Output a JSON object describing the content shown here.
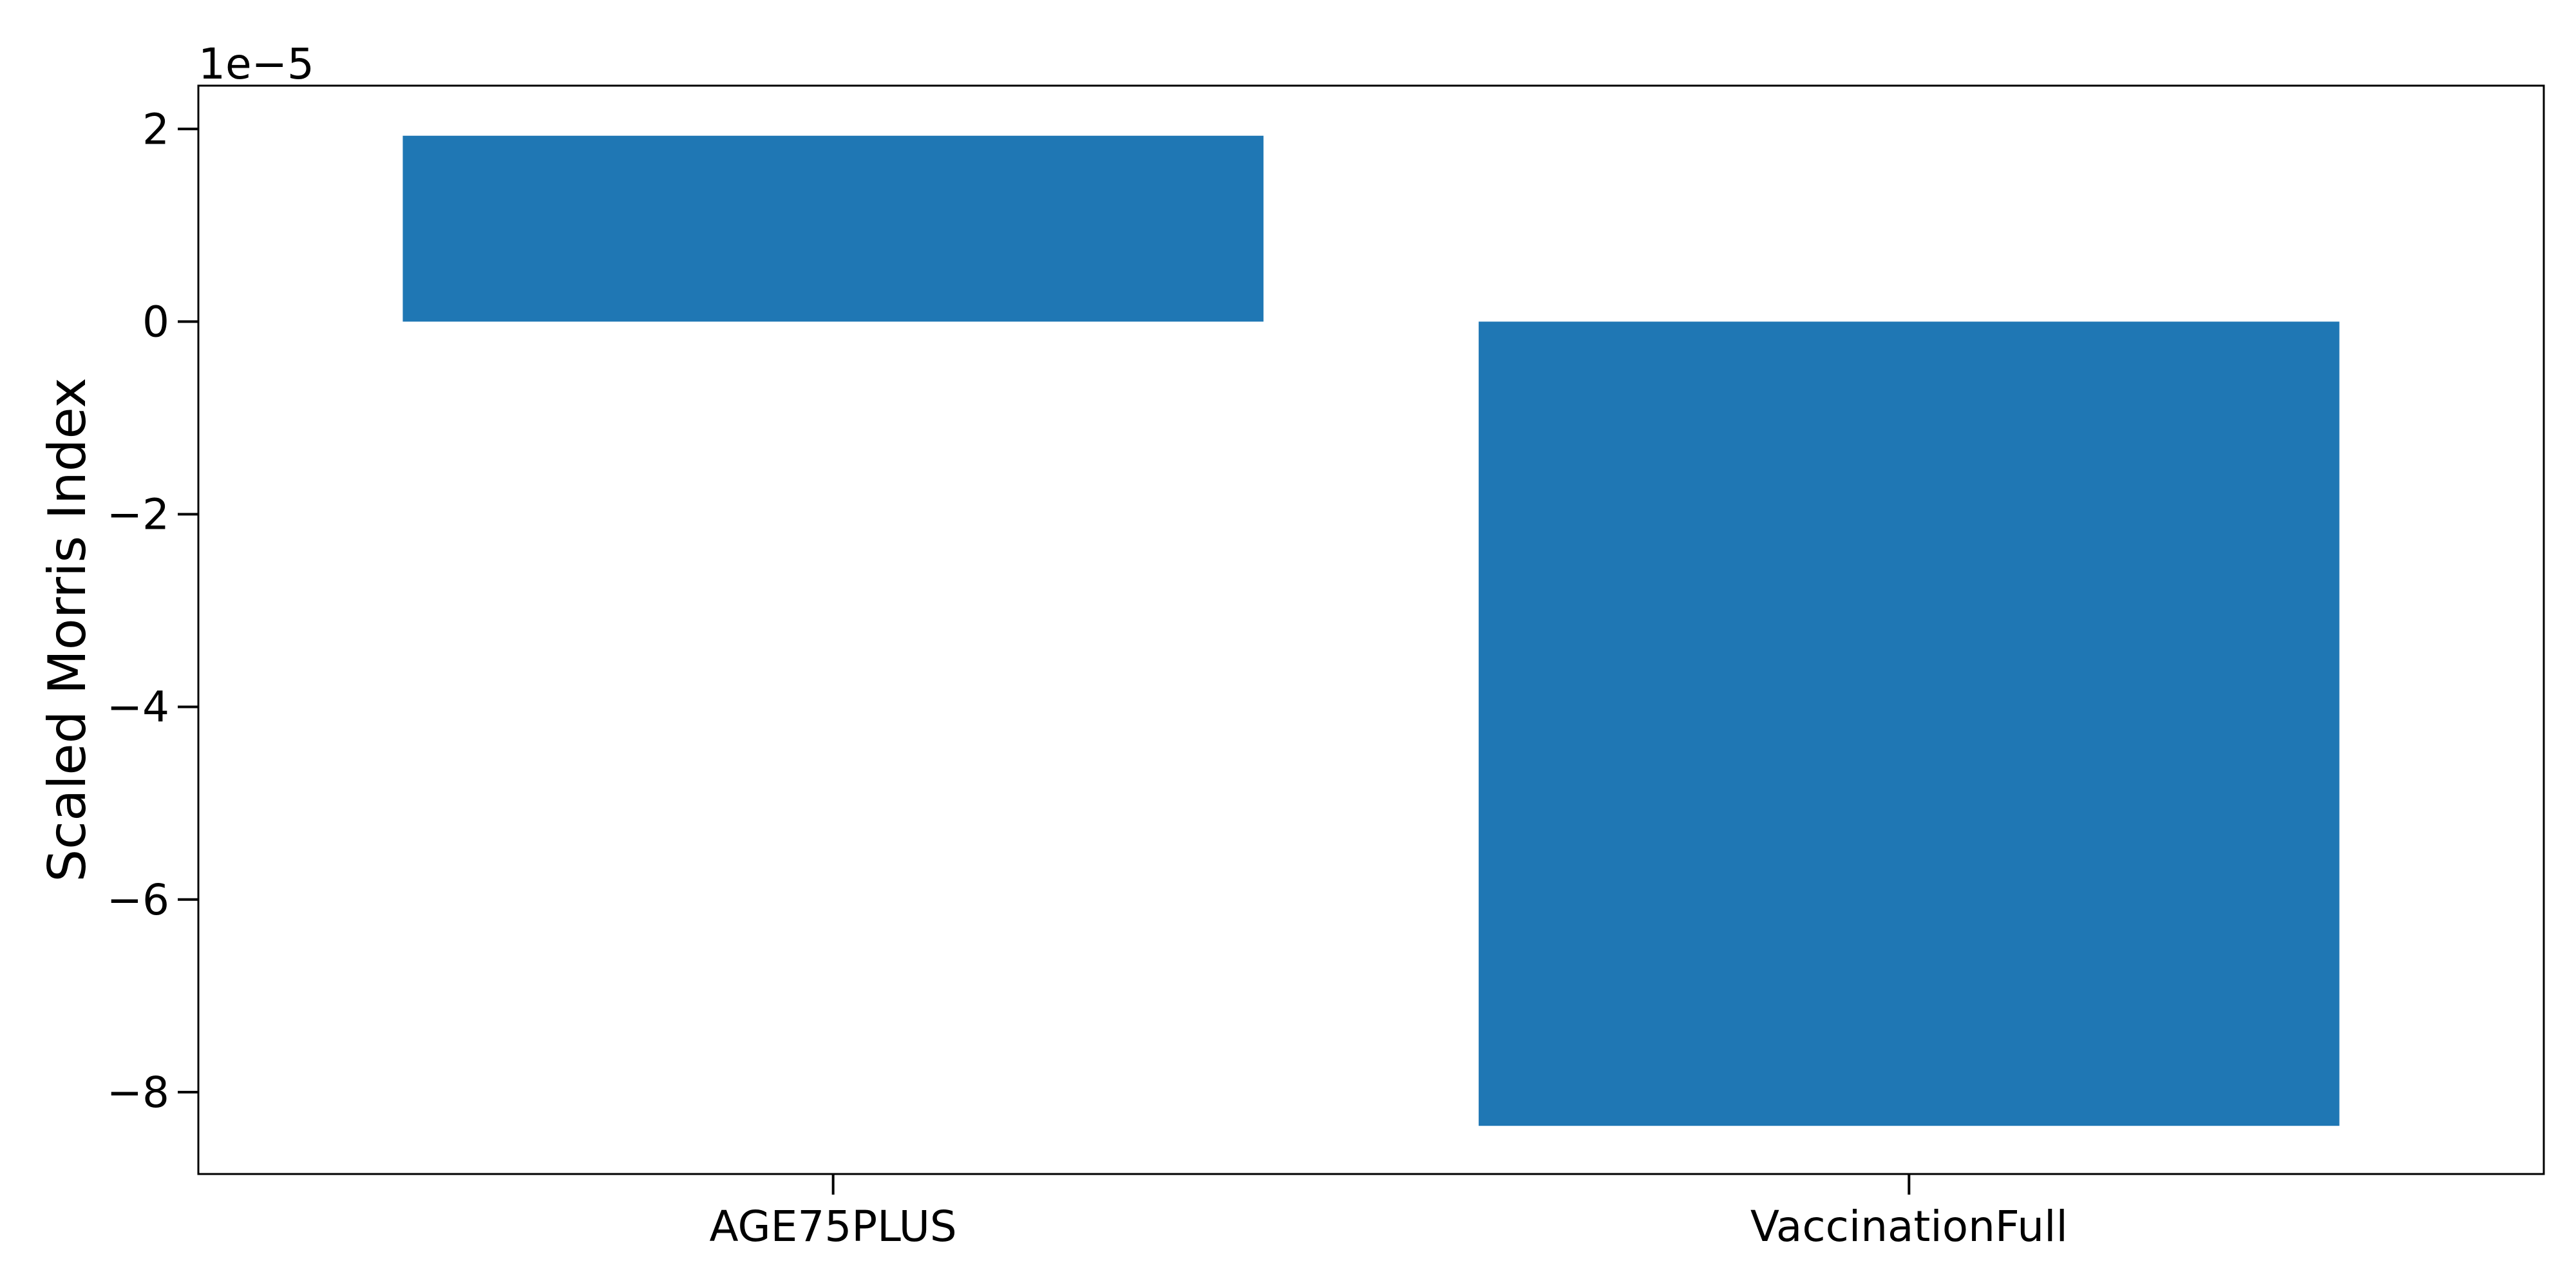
{
  "chart_data": {
    "type": "bar",
    "categories": [
      "AGE75PLUS",
      "VaccinationFull"
    ],
    "values": [
      1.93e-05,
      -8.35e-05
    ],
    "xlabel": "",
    "ylabel": "Scaled Morris Index",
    "ylim": [
      -8.85e-05,
      2.45e-05
    ],
    "y_ticks": [
      2e-05,
      0,
      -2e-05,
      -4e-05,
      -6e-05,
      -8e-05
    ],
    "y_tick_labels": [
      "2",
      "0",
      "−2",
      "−4",
      "−6",
      "−8"
    ],
    "y_offset_label": "1e−5",
    "grid": false,
    "legend": "none",
    "bar_color": "#1f77b4"
  }
}
